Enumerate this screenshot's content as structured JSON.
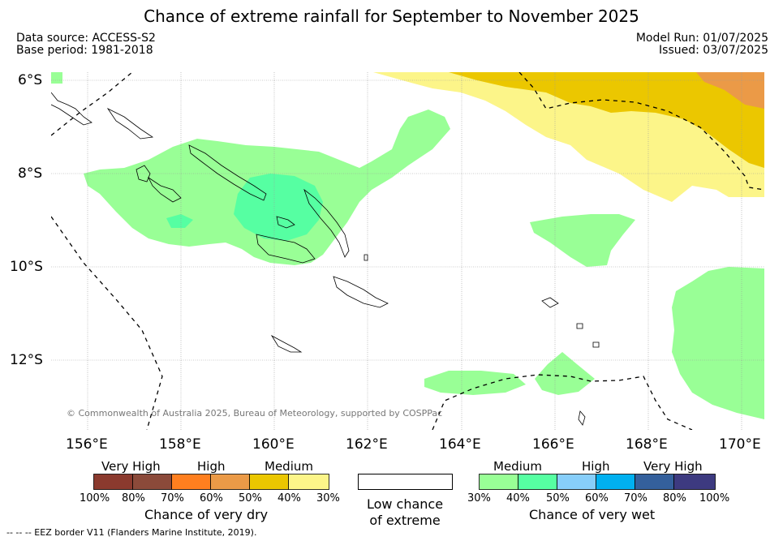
{
  "title": "Chance of extreme rainfall for September to November 2025",
  "data_source": "Data source: ACCESS-S2",
  "base_period": "Base period: 1981-2018",
  "model_run": "Model Run: 01/07/2025",
  "issued": "Issued: 03/07/2025",
  "lat_labels": [
    "6°S",
    "8°S",
    "10°S",
    "12°S"
  ],
  "lon_labels": [
    "156°E",
    "158°E",
    "160°E",
    "162°E",
    "164°E",
    "166°E",
    "168°E",
    "170°E"
  ],
  "copyright": "© Commonwealth of Australia 2025, Bureau of Meteorology, supported by COSPPac",
  "eez_note": "--  --  -- EEZ border V11 (Flanders Marine Institute, 2019).",
  "legend_dry": {
    "categories": [
      "Very High",
      "High",
      "Medium"
    ],
    "ticks": [
      "100%",
      "80%",
      "70%",
      "60%",
      "50%",
      "40%",
      "30%"
    ],
    "colors": [
      "#8b3a2e",
      "#8b4a3a",
      "#ff7f1f",
      "#eb9a47",
      "#ebc700",
      "#fcf589"
    ],
    "title": "Chance of very dry"
  },
  "legend_low": {
    "line1": "Low chance",
    "line2": "of extreme"
  },
  "legend_wet": {
    "categories": [
      "Medium",
      "High",
      "Very High"
    ],
    "ticks": [
      "30%",
      "40%",
      "50%",
      "60%",
      "70%",
      "80%",
      "100%"
    ],
    "colors": [
      "#99ff96",
      "#56ffa2",
      "#87cefa",
      "#00b0f0",
      "#34609c",
      "#3d3a80"
    ],
    "title": "Chance of very wet"
  },
  "map_colors": {
    "medium_wet": "#99ff96",
    "high_wet": "#56ffa2",
    "medium_dry": "#fcf589",
    "dry_40_50": "#ebc700",
    "dry_60_70": "#eb9a47"
  }
}
